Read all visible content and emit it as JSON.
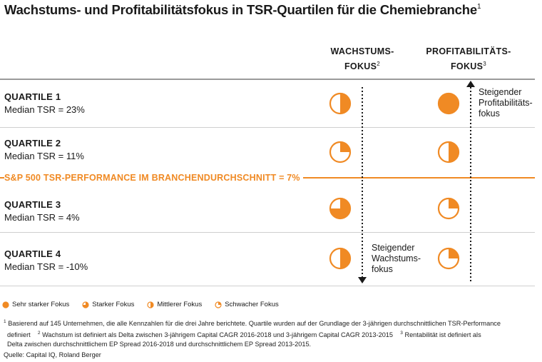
{
  "title": "Wachstums- und Profitabilitätsfokus in TSR-Quartilen für die Chemiebranche",
  "title_sup": "1",
  "columns": {
    "growth": {
      "line1": "WACHSTUMS-",
      "line2": "FOKUS",
      "sup": "2"
    },
    "profit": {
      "line1": "PROFITABILITÄTS-",
      "line2": "FOKUS",
      "sup": "3"
    }
  },
  "quartiles": [
    {
      "title": "QUARTILE 1",
      "median": "Median TSR = 23%",
      "growth": "mittlerer",
      "profit": "sehr_stark"
    },
    {
      "title": "QUARTILE 2",
      "median": "Median TSR = 11%",
      "growth": "schwacher",
      "profit": "mittlerer"
    },
    {
      "title": "QUARTILE 3",
      "median": "Median TSR = 4%",
      "growth": "starker",
      "profit": "schwacher"
    },
    {
      "title": "QUARTILE 4",
      "median": "Median TSR = -10%",
      "growth": "mittlerer",
      "profit": "schwacher"
    }
  ],
  "sp_line": "S&P 500 TSR-PERFORMANCE IM BRANCHENDURCHSCHNITT = 7%",
  "profit_arrow_note": [
    "Steigender",
    "Profitabilitäts-",
    "fokus"
  ],
  "growth_arrow_note": [
    "Steigender",
    "Wachstums-",
    "fokus"
  ],
  "legend": [
    {
      "key": "sehr_stark",
      "label": "Sehr starker Fokus",
      "fill": 1.0
    },
    {
      "key": "starker",
      "label": "Starker Fokus",
      "fill": 0.75
    },
    {
      "key": "mittlerer",
      "label": "Mittlerer Fokus",
      "fill": 0.5
    },
    {
      "key": "schwacher",
      "label": "Schwacher Fokus",
      "fill": 0.25
    }
  ],
  "footnotes": {
    "fn1_num": "1",
    "fn1": "Basierend auf 145 Unternehmen, die alle Kennzahlen für die drei Jahre berichtete. Quartile wurden auf der Grundlage der 3-jährigen durchschnittlichen TSR-Performance",
    "fn1_cont": "definiert",
    "fn2_num": "2",
    "fn2": "Wachstum ist definiert als Delta zwischen 3-jährigem Capital CAGR 2016-2018 und 3-jährigem Capital CAGR 2013-2015",
    "fn3_num": "3",
    "fn3": "Rentabilität ist definiert als",
    "fn3_cont": "Delta zwischen durchschnittlichem EP Spread 2016-2018 und durchschnittlichem EP Spread 2013-2015."
  },
  "source": "Quelle: Capital IQ, Roland Berger",
  "colors": {
    "accent": "#f08a24",
    "text": "#1a1a1a"
  }
}
